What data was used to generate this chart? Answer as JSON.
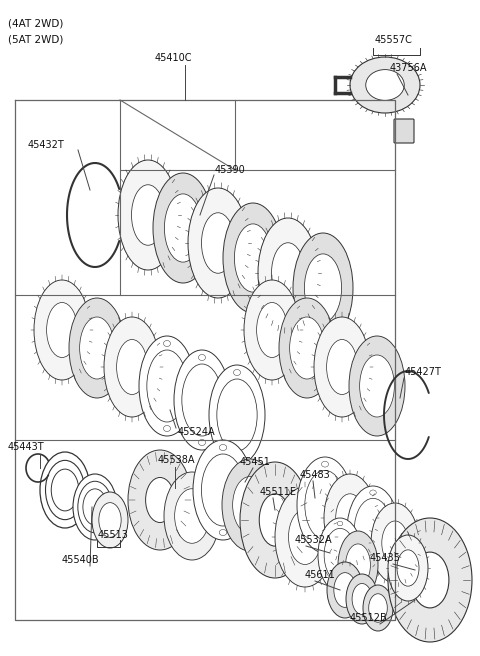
{
  "bg_color": "#ffffff",
  "line_color": "#333333",
  "box_line_color": "#666666",
  "title1": "(4AT 2WD)",
  "title2": "(5AT 2WD)",
  "label_45410C": "45410C",
  "label_45432T": "45432T",
  "label_45390": "45390",
  "label_45524A": "45524A",
  "label_45427T": "45427T",
  "label_45443T": "45443T",
  "label_45451": "45451",
  "label_45538A": "45538A",
  "label_45511E": "45511E",
  "label_45483": "45483",
  "label_45513": "45513",
  "label_45532A": "45532A",
  "label_45540B": "45540B",
  "label_45611": "45611",
  "label_45435": "45435",
  "label_45512B": "45512B",
  "label_45557C": "45557C",
  "label_43756A": "43756A"
}
